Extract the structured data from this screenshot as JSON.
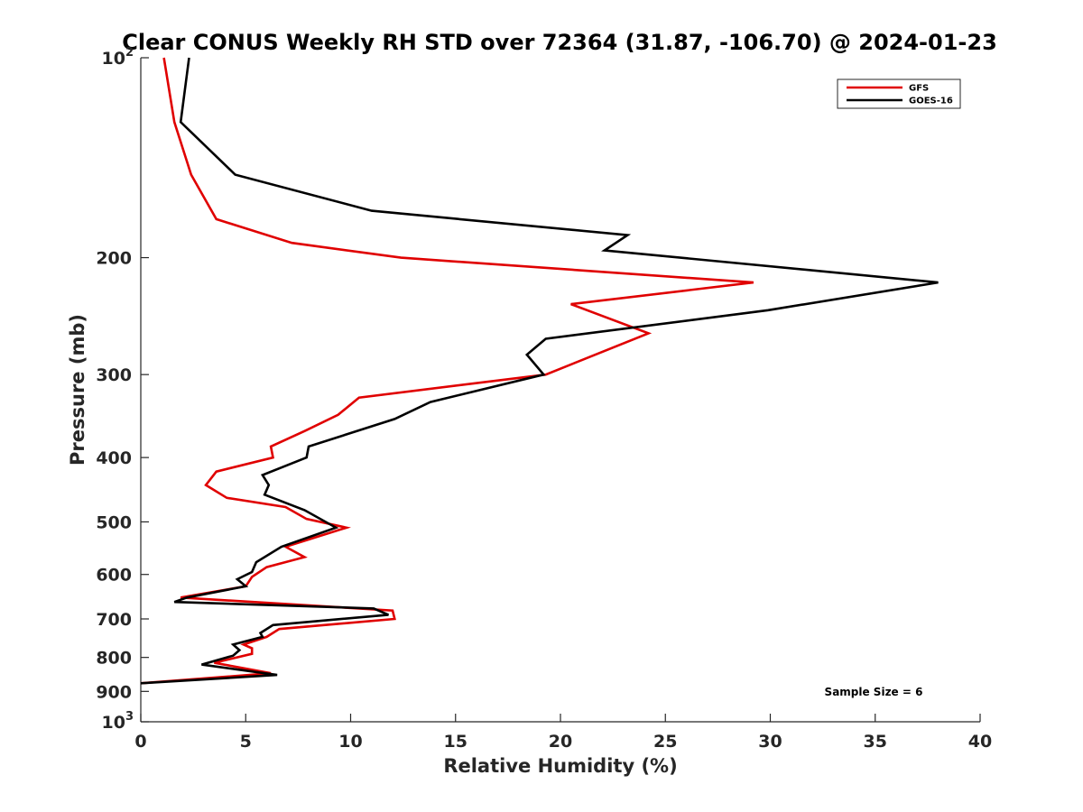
{
  "chart_data": {
    "type": "line",
    "title": "Clear CONUS Weekly RH STD over 72364 (31.87, -106.70) @ 2024-01-23",
    "xlabel": "Relative Humidity (%)",
    "ylabel": "Pressure (mb)",
    "xlim": [
      0,
      40
    ],
    "ylim": [
      100,
      1000
    ],
    "y_scale": "log",
    "y_reversed": true,
    "x_ticks": [
      0,
      5,
      10,
      15,
      20,
      25,
      30,
      35,
      40
    ],
    "x_tick_labels": [
      "0",
      "5",
      "10",
      "15",
      "20",
      "25",
      "30",
      "35",
      "40"
    ],
    "y_ticks": [
      100,
      200,
      300,
      400,
      500,
      600,
      700,
      800,
      900,
      1000
    ],
    "y_tick_labels": [
      {
        "base": "10",
        "exp": "2"
      },
      {
        "base": "200",
        "exp": ""
      },
      {
        "base": "300",
        "exp": ""
      },
      {
        "base": "400",
        "exp": ""
      },
      {
        "base": "500",
        "exp": ""
      },
      {
        "base": "600",
        "exp": ""
      },
      {
        "base": "700",
        "exp": ""
      },
      {
        "base": "800",
        "exp": ""
      },
      {
        "base": "900",
        "exp": ""
      },
      {
        "base": "10",
        "exp": "3"
      }
    ],
    "grid": false,
    "legend_position": "top-right",
    "annotation": "Sample Size = 6",
    "series": [
      {
        "name": "GFS",
        "color": "#e00000",
        "points": [
          [
            1.1,
            100
          ],
          [
            1.6,
            125
          ],
          [
            2.4,
            150
          ],
          [
            3.6,
            175
          ],
          [
            7.2,
            190
          ],
          [
            12.4,
            200
          ],
          [
            29.2,
            218
          ],
          [
            20.5,
            235
          ],
          [
            24.2,
            260
          ],
          [
            19.3,
            300
          ],
          [
            10.4,
            325
          ],
          [
            9.4,
            345
          ],
          [
            7.8,
            365
          ],
          [
            6.2,
            385
          ],
          [
            6.3,
            400
          ],
          [
            3.6,
            420
          ],
          [
            3.1,
            440
          ],
          [
            4.1,
            460
          ],
          [
            6.9,
            475
          ],
          [
            7.9,
            495
          ],
          [
            9.8,
            510
          ],
          [
            6.9,
            545
          ],
          [
            7.8,
            565
          ],
          [
            6.0,
            585
          ],
          [
            5.3,
            605
          ],
          [
            5.0,
            625
          ],
          [
            1.9,
            650
          ],
          [
            12.0,
            680
          ],
          [
            12.1,
            700
          ],
          [
            6.6,
            725
          ],
          [
            6.0,
            745
          ],
          [
            4.9,
            765
          ],
          [
            5.3,
            775
          ],
          [
            5.3,
            790
          ],
          [
            3.5,
            815
          ],
          [
            6.2,
            845
          ],
          [
            0.0,
            875
          ]
        ]
      },
      {
        "name": "GOES-16",
        "color": "#000000",
        "points": [
          [
            2.3,
            100
          ],
          [
            1.9,
            125
          ],
          [
            4.5,
            150
          ],
          [
            11.0,
            170
          ],
          [
            23.2,
            185
          ],
          [
            22.1,
            195
          ],
          [
            38.0,
            218
          ],
          [
            29.9,
            240
          ],
          [
            19.3,
            265
          ],
          [
            18.4,
            280
          ],
          [
            19.2,
            300
          ],
          [
            13.8,
            330
          ],
          [
            12.1,
            350
          ],
          [
            8.0,
            385
          ],
          [
            7.9,
            400
          ],
          [
            5.8,
            425
          ],
          [
            6.1,
            440
          ],
          [
            5.9,
            455
          ],
          [
            7.8,
            480
          ],
          [
            9.3,
            510
          ],
          [
            6.7,
            545
          ],
          [
            5.5,
            575
          ],
          [
            5.3,
            595
          ],
          [
            4.6,
            610
          ],
          [
            5.0,
            625
          ],
          [
            2.2,
            650
          ],
          [
            1.6,
            660
          ],
          [
            11.1,
            675
          ],
          [
            11.8,
            690
          ],
          [
            6.3,
            715
          ],
          [
            5.7,
            735
          ],
          [
            5.8,
            745
          ],
          [
            4.4,
            765
          ],
          [
            4.7,
            780
          ],
          [
            4.4,
            795
          ],
          [
            2.9,
            820
          ],
          [
            6.5,
            850
          ],
          [
            0.0,
            875
          ]
        ]
      }
    ]
  }
}
